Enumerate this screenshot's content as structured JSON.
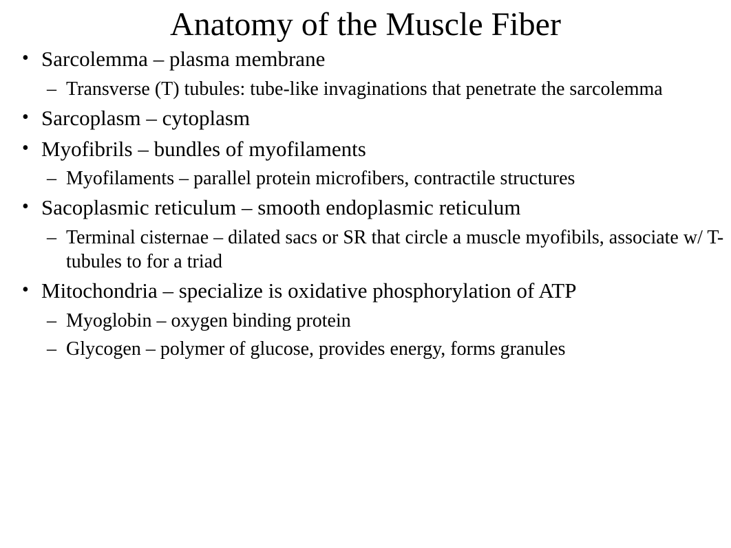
{
  "title": "Anatomy of the Muscle Fiber",
  "items": [
    {
      "text": "Sarcolemma – plasma membrane",
      "sub": [
        "Transverse (T) tubules: tube-like invaginations that penetrate the sarcolemma"
      ]
    },
    {
      "text": "Sarcoplasm – cytoplasm",
      "sub": []
    },
    {
      "text": "Myofibrils – bundles of myofilaments",
      "sub": [
        "Myofilaments – parallel protein microfibers, contractile structures"
      ]
    },
    {
      "text": "Sacoplasmic reticulum – smooth endoplasmic reticulum",
      "sub": [
        "Terminal cisternae – dilated sacs or SR that circle a muscle myofibils, associate w/ T-tubules to for a triad"
      ]
    },
    {
      "text": "Mitochondria – specialize is oxidative phosphorylation of ATP",
      "sub": [
        "Myoglobin – oxygen binding protein",
        "Glycogen – polymer of glucose, provides energy, forms granules"
      ]
    }
  ],
  "styling": {
    "background_color": "#ffffff",
    "text_color": "#000000",
    "title_fontsize": 48,
    "level1_fontsize": 31,
    "level2_fontsize": 28,
    "font_family": "Times New Roman, serif",
    "bullet_l1": "•",
    "bullet_l2": "–"
  }
}
